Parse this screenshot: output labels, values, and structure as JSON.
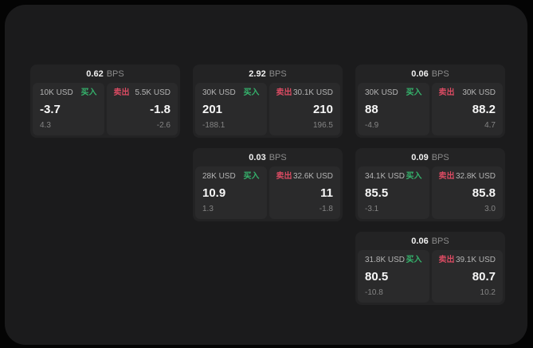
{
  "colors": {
    "page_bg": "#040404",
    "panel_bg": "#1b1b1c",
    "card_bg": "#232324",
    "tile_bg": "#2a2a2b",
    "buy_green": "#35b36c",
    "sell_red": "#d94b62"
  },
  "labels": {
    "bps_unit": "BPS",
    "buy": "买入",
    "sell": "卖出"
  },
  "cards": [
    {
      "bps": "0.62",
      "buy": {
        "size": "10K USD",
        "price": "-3.7",
        "sub": "4.3"
      },
      "sell": {
        "size": "5.5K USD",
        "price": "-1.8",
        "sub": "-2.6"
      }
    },
    {
      "bps": "2.92",
      "buy": {
        "size": "30K USD",
        "price": "201",
        "sub": "-188.1"
      },
      "sell": {
        "size": "30.1K USD",
        "price": "210",
        "sub": "196.5"
      }
    },
    {
      "bps": "0.06",
      "buy": {
        "size": "30K USD",
        "price": "88",
        "sub": "-4.9"
      },
      "sell": {
        "size": "30K USD",
        "price": "88.2",
        "sub": "4.7"
      }
    },
    {
      "bps": "0.03",
      "buy": {
        "size": "28K USD",
        "price": "10.9",
        "sub": "1.3"
      },
      "sell": {
        "size": "32.6K USD",
        "price": "11",
        "sub": "-1.8"
      }
    },
    {
      "bps": "0.09",
      "buy": {
        "size": "34.1K USD",
        "price": "85.5",
        "sub": "-3.1"
      },
      "sell": {
        "size": "32.8K USD",
        "price": "85.8",
        "sub": "3.0"
      }
    },
    {
      "bps": "0.06",
      "buy": {
        "size": "31.8K USD",
        "price": "80.5",
        "sub": "-10.8"
      },
      "sell": {
        "size": "39.1K USD",
        "price": "80.7",
        "sub": "10.2"
      }
    }
  ]
}
